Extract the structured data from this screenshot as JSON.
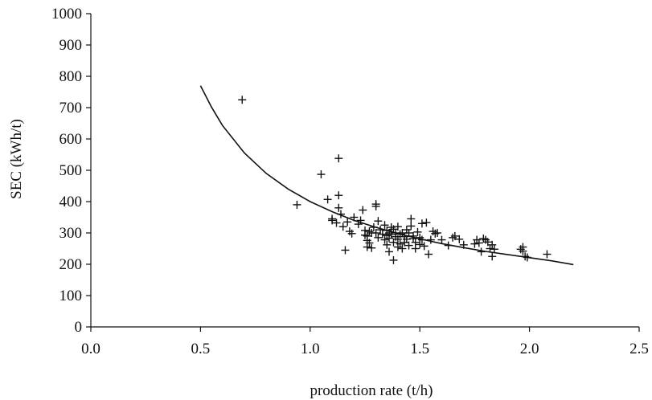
{
  "chart_data": {
    "type": "scatter",
    "title": "",
    "xlabel": "production rate (t/h)",
    "ylabel": "SEC (kWh/t)",
    "xlim": [
      0.0,
      2.5
    ],
    "ylim": [
      0,
      1000
    ],
    "xticks": [
      "0.0",
      "0.5",
      "1.0",
      "1.5",
      "2.0",
      "2.5"
    ],
    "yticks": [
      "0",
      "100",
      "200",
      "300",
      "400",
      "500",
      "600",
      "700",
      "800",
      "900",
      "1000"
    ],
    "xtick_values": [
      0.0,
      0.5,
      1.0,
      1.5,
      2.0,
      2.5
    ],
    "ytick_values": [
      0,
      100,
      200,
      300,
      400,
      500,
      600,
      700,
      800,
      900,
      1000
    ],
    "grid": false,
    "legend": "none",
    "marker": "plus",
    "series": [
      {
        "type": "scatter",
        "points": [
          [
            0.69,
            725
          ],
          [
            0.94,
            390
          ],
          [
            1.05,
            487
          ],
          [
            1.08,
            407
          ],
          [
            1.1,
            345
          ],
          [
            1.1,
            340
          ],
          [
            1.12,
            332
          ],
          [
            1.13,
            538
          ],
          [
            1.13,
            420
          ],
          [
            1.13,
            380
          ],
          [
            1.14,
            360
          ],
          [
            1.15,
            320
          ],
          [
            1.16,
            245
          ],
          [
            1.17,
            335
          ],
          [
            1.18,
            305
          ],
          [
            1.19,
            298
          ],
          [
            1.2,
            350
          ],
          [
            1.22,
            328
          ],
          [
            1.23,
            340
          ],
          [
            1.24,
            373
          ],
          [
            1.25,
            293
          ],
          [
            1.25,
            308
          ],
          [
            1.26,
            290
          ],
          [
            1.26,
            276
          ],
          [
            1.26,
            255
          ],
          [
            1.27,
            305
          ],
          [
            1.27,
            268
          ],
          [
            1.28,
            300
          ],
          [
            1.28,
            252
          ],
          [
            1.29,
            318
          ],
          [
            1.3,
            392
          ],
          [
            1.3,
            385
          ],
          [
            1.3,
            300
          ],
          [
            1.31,
            285
          ],
          [
            1.31,
            338
          ],
          [
            1.32,
            310
          ],
          [
            1.33,
            296
          ],
          [
            1.34,
            325
          ],
          [
            1.34,
            278
          ],
          [
            1.35,
            308
          ],
          [
            1.35,
            292
          ],
          [
            1.35,
            262
          ],
          [
            1.36,
            300
          ],
          [
            1.36,
            283
          ],
          [
            1.36,
            240
          ],
          [
            1.37,
            318
          ],
          [
            1.37,
            295
          ],
          [
            1.38,
            270
          ],
          [
            1.38,
            312
          ],
          [
            1.38,
            213
          ],
          [
            1.39,
            300
          ],
          [
            1.39,
            288
          ],
          [
            1.4,
            255
          ],
          [
            1.4,
            320
          ],
          [
            1.4,
            280
          ],
          [
            1.41,
            296
          ],
          [
            1.41,
            265
          ],
          [
            1.42,
            300
          ],
          [
            1.42,
            250
          ],
          [
            1.43,
            288
          ],
          [
            1.43,
            270
          ],
          [
            1.44,
            310
          ],
          [
            1.44,
            280
          ],
          [
            1.45,
            260
          ],
          [
            1.45,
            300
          ],
          [
            1.46,
            322
          ],
          [
            1.46,
            345
          ],
          [
            1.47,
            290
          ],
          [
            1.47,
            282
          ],
          [
            1.48,
            250
          ],
          [
            1.48,
            270
          ],
          [
            1.49,
            303
          ],
          [
            1.5,
            285
          ],
          [
            1.5,
            263
          ],
          [
            1.51,
            330
          ],
          [
            1.51,
            278
          ],
          [
            1.52,
            258
          ],
          [
            1.53,
            333
          ],
          [
            1.54,
            232
          ],
          [
            1.55,
            278
          ],
          [
            1.56,
            305
          ],
          [
            1.57,
            298
          ],
          [
            1.58,
            300
          ],
          [
            1.6,
            278
          ],
          [
            1.63,
            260
          ],
          [
            1.65,
            285
          ],
          [
            1.66,
            290
          ],
          [
            1.68,
            280
          ],
          [
            1.7,
            262
          ],
          [
            1.75,
            265
          ],
          [
            1.76,
            278
          ],
          [
            1.77,
            268
          ],
          [
            1.78,
            240
          ],
          [
            1.79,
            282
          ],
          [
            1.8,
            278
          ],
          [
            1.81,
            271
          ],
          [
            1.82,
            250
          ],
          [
            1.83,
            262
          ],
          [
            1.83,
            225
          ],
          [
            1.84,
            248
          ],
          [
            1.96,
            248
          ],
          [
            1.97,
            242
          ],
          [
            1.97,
            255
          ],
          [
            1.98,
            225
          ],
          [
            1.99,
            222
          ],
          [
            2.08,
            232
          ]
        ]
      },
      {
        "type": "line",
        "x": [
          0.5,
          0.55,
          0.6,
          0.7,
          0.8,
          0.9,
          1.0,
          1.1,
          1.2,
          1.3,
          1.4,
          1.5,
          1.6,
          1.7,
          1.8,
          1.9,
          2.0,
          2.1,
          2.2
        ],
        "y": [
          770,
          702,
          643,
          555,
          490,
          440,
          400,
          368,
          340,
          318,
          298,
          281,
          266,
          253,
          241,
          231,
          221,
          211,
          199
        ]
      }
    ]
  }
}
